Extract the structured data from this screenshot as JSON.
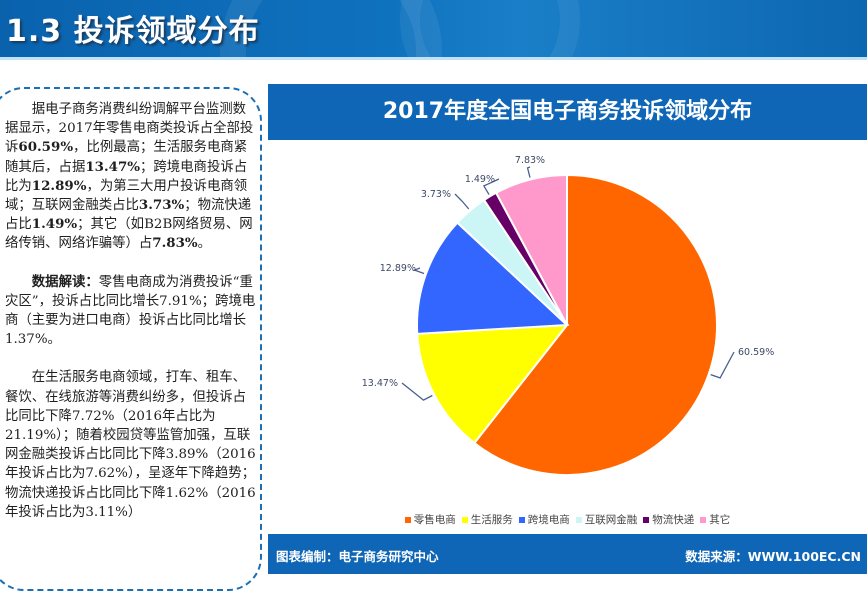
{
  "header": {
    "title": "1.3  投诉领域分布"
  },
  "text": {
    "paragraphs": [
      {
        "segments": [
          {
            "t": "据电子商务消费纠纷调解平台监测数据显示，2017年零售电商类投诉占全部投诉",
            "b": false
          },
          {
            "t": "60.59%",
            "b": true
          },
          {
            "t": "，比例最高；生活服务电商紧随其后，占据",
            "b": false
          },
          {
            "t": "13.47%",
            "b": true
          },
          {
            "t": "；跨境电商投诉占比为",
            "b": false
          },
          {
            "t": "12.89%",
            "b": true
          },
          {
            "t": "，为第三大用户投诉电商领域；互联网金融类占比",
            "b": false
          },
          {
            "t": "3.73%",
            "b": true
          },
          {
            "t": "；物流快递占比",
            "b": false
          },
          {
            "t": "1.49%",
            "b": true
          },
          {
            "t": "；其它（如B2B网络贸易、网络传销、网络诈骗等）占",
            "b": false
          },
          {
            "t": "7.83%",
            "b": true
          },
          {
            "t": "。",
            "b": false
          }
        ]
      },
      {
        "segments": [
          {
            "t": "数据解读：",
            "b": true
          },
          {
            "t": "零售电商成为消费投诉“重灾区”，投诉占比同比增长7.91%；跨境电商（主要为进口电商）投诉占比同比增长1.37%。",
            "b": false
          }
        ]
      },
      {
        "segments": [
          {
            "t": "在生活服务电商领域，打车、租车、餐饮、在线旅游等消费纠纷多，但投诉占比同比下降7.72%（2016年占比为21.19%）；随着校园贷等监管加强，互联网金融类投诉占比同比下降3.89%（2016年投诉占比为7.62%），呈逐年下降趋势；物流快递投诉占比同比下降1.62%（2016年投诉占比为3.11%）",
            "b": false
          }
        ]
      }
    ]
  },
  "chart": {
    "title": "2017年度全国电子商务投诉领域分布",
    "footer_left": "图表编制：电子商务研究中心",
    "footer_right": "数据来源：WWW.100EC.CN"
  },
  "chart_data": {
    "type": "pie",
    "title": "2017年度全国电子商务投诉领域分布",
    "categories": [
      "零售电商",
      "生活服务",
      "跨境电商",
      "互联网金融",
      "物流快递",
      "其它"
    ],
    "values": [
      60.59,
      13.47,
      12.89,
      3.73,
      1.49,
      7.83
    ],
    "labels": [
      "60.59%",
      "13.47%",
      "12.89%",
      "3.73%",
      "1.49%",
      "7.83%"
    ],
    "colors": [
      "#ff6600",
      "#ffff00",
      "#3366ff",
      "#ccf5f5",
      "#660066",
      "#ff99cc"
    ],
    "start_angle_deg": 0,
    "direction": "clockwise",
    "legend_position": "bottom"
  }
}
